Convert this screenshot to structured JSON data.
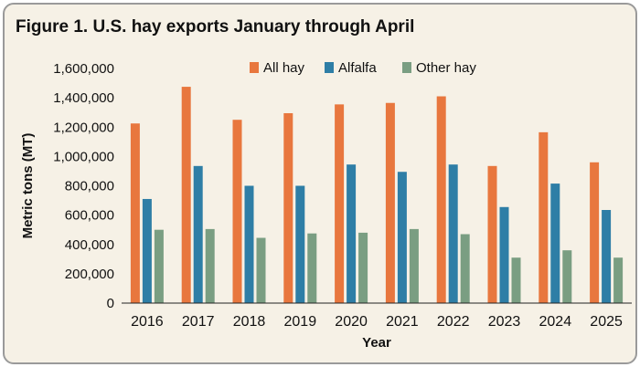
{
  "figure_title": "Figure 1. U.S. hay exports January through April",
  "chart_data": {
    "type": "bar",
    "xlabel": "Year",
    "ylabel": "Metric tons (MT)",
    "ylim": [
      0,
      1600000
    ],
    "yticks": [
      0,
      200000,
      400000,
      600000,
      800000,
      1000000,
      1200000,
      1400000,
      1600000
    ],
    "ytick_labels": [
      "0",
      "200,000",
      "400,000",
      "600,000",
      "800,000",
      "1,000,000",
      "1,200,000",
      "1,400,000",
      "1,600,000"
    ],
    "grid": false,
    "legend_position": "top",
    "categories": [
      "2016",
      "2017",
      "2018",
      "2019",
      "2020",
      "2021",
      "2022",
      "2023",
      "2024",
      "2025"
    ],
    "series": [
      {
        "name": "All hay",
        "color": "#e8773e",
        "values": [
          1225000,
          1475000,
          1250000,
          1295000,
          1355000,
          1365000,
          1410000,
          935000,
          1165000,
          960000
        ]
      },
      {
        "name": "Alfalfa",
        "color": "#2e7ea6",
        "values": [
          710000,
          935000,
          800000,
          800000,
          945000,
          895000,
          945000,
          655000,
          815000,
          635000
        ]
      },
      {
        "name": "Other hay",
        "color": "#7a9e82",
        "values": [
          500000,
          505000,
          445000,
          475000,
          480000,
          505000,
          470000,
          310000,
          360000,
          310000
        ]
      }
    ]
  }
}
